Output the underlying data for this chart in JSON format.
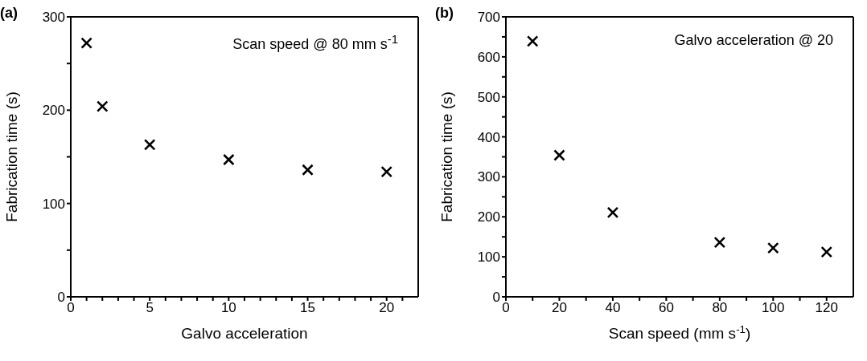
{
  "chart_data": [
    {
      "type": "scatter",
      "title": "(a)",
      "xlabel": "Galvo acceleration",
      "ylabel": "Fabrication time (s)",
      "annotations": [
        "Scan speed @ 80 mm s$^{-1}$"
      ],
      "x": [
        1,
        2,
        5,
        10,
        15,
        20
      ],
      "series": [
        {
          "color": "#000000",
          "values": [
            272,
            204,
            163,
            147,
            136,
            134
          ]
        }
      ],
      "xlim": [
        0,
        22
      ],
      "xticks": [
        0,
        {
          "value": 1,
          "label": null
        },
        {
          "value": 2,
          "label": null
        },
        {
          "value": 3,
          "label": null
        },
        {
          "value": 4,
          "label": null
        },
        5,
        {
          "value": 6,
          "label": null
        },
        {
          "value": 7,
          "label": null
        },
        {
          "value": 8,
          "label": null
        },
        {
          "value": 9,
          "label": null
        },
        10,
        {
          "value": 11,
          "label": null
        },
        {
          "value": 12,
          "label": null
        },
        {
          "value": 13,
          "label": null
        },
        {
          "value": 14,
          "label": null
        },
        15,
        {
          "value": 16,
          "label": null
        },
        {
          "value": 17,
          "label": null
        },
        {
          "value": 18,
          "label": null
        },
        {
          "value": 19,
          "label": null
        },
        20,
        {
          "value": 21,
          "label": null
        }
      ],
      "ylim": [
        0,
        300
      ],
      "yticks": [
        0,
        {
          "value": 50,
          "label": null
        },
        100,
        {
          "value": 150,
          "label": null
        },
        200,
        {
          "value": 250,
          "label": null
        },
        300
      ],
      "marker": "cross"
    },
    {
      "type": "scatter",
      "title": "(b)",
      "xlabel": "Scan speed (mm s$^{-1}$)",
      "ylabel": "Fabrication time (s)",
      "annotations": [
        "Galvo acceleration @ 20"
      ],
      "x": [
        10,
        20,
        40,
        80,
        100,
        120
      ],
      "series": [
        {
          "color": "#000000",
          "values": [
            639,
            354,
            211,
            136,
            122,
            112
          ]
        }
      ],
      "xlim": [
        0,
        130
      ],
      "xticks": [
        0,
        {
          "value": 10,
          "label": null
        },
        20,
        {
          "value": 30,
          "label": null
        },
        40,
        {
          "value": 50,
          "label": null
        },
        60,
        {
          "value": 70,
          "label": null
        },
        80,
        {
          "value": 90,
          "label": null
        },
        100,
        {
          "value": 110,
          "label": null
        },
        120
      ],
      "ylim": [
        0,
        700
      ],
      "yticks": [
        0,
        {
          "value": 50,
          "label": null
        },
        100,
        {
          "value": 150,
          "label": null
        },
        200,
        {
          "value": 250,
          "label": null
        },
        300,
        {
          "value": 350,
          "label": null
        },
        400,
        {
          "value": 450,
          "label": null
        },
        500,
        {
          "value": 550,
          "label": null
        },
        600,
        {
          "value": 650,
          "label": null
        },
        700
      ],
      "marker": "cross"
    }
  ]
}
